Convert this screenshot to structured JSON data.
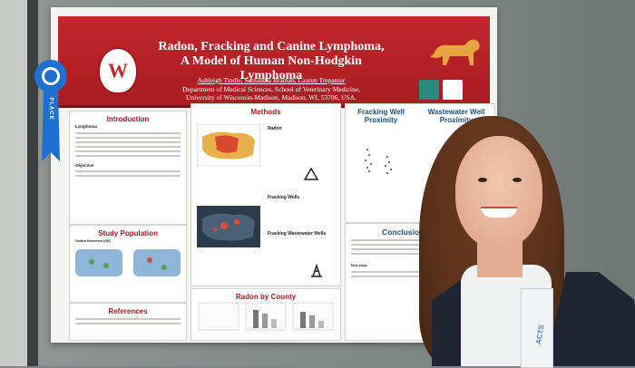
{
  "poster": {
    "title_line1": "Radon, Fracking and Canine Lymphoma,",
    "title_line2": "A Model of Human Non-Hodgkin Lymphoma",
    "authors": "Ashleigh Tindle, Samantha Braman, Lauren Trepanier",
    "affiliation1": "Department of Medical Sciences, School of Veterinary Medicine,",
    "affiliation2": "University of Wisconsin-Madison, Madison, WI, 53706, USA.",
    "logo_letter": "W",
    "ribbon_label": "PLACE",
    "sections": {
      "introduction": "Introduction",
      "lymphoma": "Lymphoma",
      "objective": "Objective",
      "study_population": "Study Population",
      "golden_retrievers": "Golden Retrievers (GR)",
      "references": "References",
      "methods": "Methods",
      "radon": "Radon",
      "fracking_wells": "Fracking Wells",
      "fracking_wastewater_wells": "Fracking Wastewater Wells",
      "radon_by_county": "Radon by County",
      "fracking_well_proximity": "Fracking Well Proximity",
      "wastewater_well_proximity": "Wastewater Well Proximity",
      "conclusions": "Conclusions and Significance",
      "next_steps": "Next steps"
    }
  },
  "badge_text": "ACTS",
  "colors": {
    "banner": "#c0282d",
    "section_title": "#9b1c20",
    "heading_blue": "#1f4e79",
    "ribbon": "#1d6fd0"
  }
}
